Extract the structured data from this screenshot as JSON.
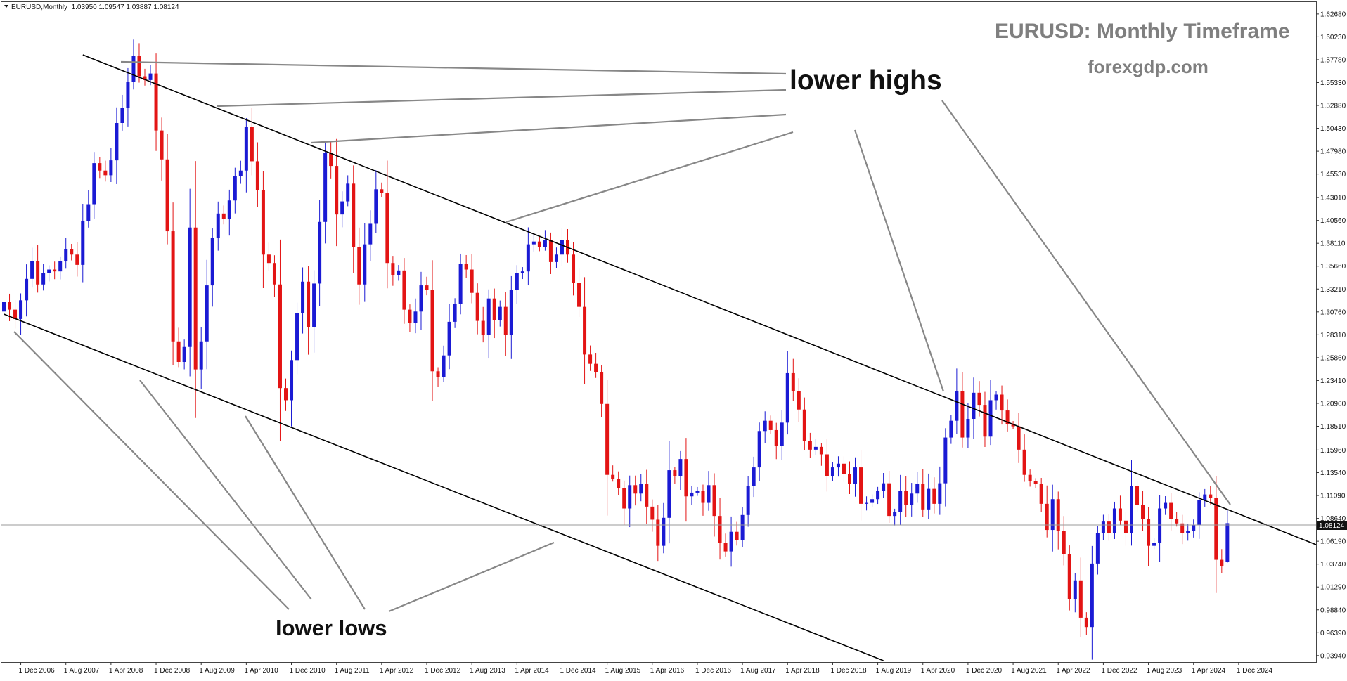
{
  "header": {
    "symbol_line": "EURUSD,Monthly  1.03950 1.09547 1.03887 1.08124"
  },
  "annotations": {
    "title": "EURUSD: Monthly Timeframe",
    "site": "forexgdp.com",
    "lower_highs": "lower highs",
    "lower_lows": "lower lows"
  },
  "current_price_label": "1.08124",
  "chart_data": {
    "type": "candlestick",
    "symbol": "EURUSD",
    "timeframe": "Monthly",
    "ohlc_last": {
      "open": 1.0395,
      "high": 1.09547,
      "low": 1.03887,
      "close": 1.08124
    },
    "ylim": [
      0.9325,
      1.6395
    ],
    "y_ticks": [
      "1.62680",
      "1.60230",
      "1.57780",
      "1.55330",
      "1.52880",
      "1.50430",
      "1.47980",
      "1.45530",
      "1.43010",
      "1.40560",
      "1.38110",
      "1.35660",
      "1.33210",
      "1.30760",
      "1.28310",
      "1.25860",
      "1.23410",
      "1.20960",
      "1.18510",
      "1.15960",
      "1.13540",
      "1.11090",
      "1.08640",
      "1.06190",
      "1.03740",
      "1.01290",
      "0.98840",
      "0.96390",
      "0.93940"
    ],
    "x_ticks": [
      "1 Dec 2006",
      "1 Aug 2007",
      "1 Apr 2008",
      "1 Dec 2008",
      "1 Aug 2009",
      "1 Apr 2010",
      "1 Dec 2010",
      "1 Aug 2011",
      "1 Apr 2012",
      "1 Dec 2012",
      "1 Aug 2013",
      "1 Apr 2014",
      "1 Dec 2014",
      "1 Aug 2015",
      "1 Apr 2016",
      "1 Dec 2016",
      "1 Aug 2017",
      "1 Apr 2018",
      "1 Dec 2018",
      "1 Aug 2019",
      "1 Apr 2020",
      "1 Dec 2020",
      "1 Aug 2021",
      "1 Apr 2022",
      "1 Dec 2022",
      "1 Aug 2023",
      "1 Apr 2024",
      "1 Dec 2024"
    ],
    "x_start": "2006-09",
    "closes": [
      1.318,
      1.31,
      1.3,
      1.32,
      1.343,
      1.362,
      1.337,
      1.349,
      1.353,
      1.351,
      1.362,
      1.375,
      1.369,
      1.358,
      1.405,
      1.423,
      1.467,
      1.459,
      1.454,
      1.47,
      1.51,
      1.526,
      1.554,
      1.582,
      1.56,
      1.556,
      1.563,
      1.502,
      1.471,
      1.394,
      1.276,
      1.254,
      1.27,
      1.398,
      1.246,
      1.276,
      1.336,
      1.387,
      1.413,
      1.407,
      1.427,
      1.453,
      1.459,
      1.506,
      1.469,
      1.438,
      1.369,
      1.36,
      1.337,
      1.226,
      1.213,
      1.256,
      1.306,
      1.34,
      1.291,
      1.338,
      1.404,
      1.478,
      1.464,
      1.412,
      1.426,
      1.445,
      1.377,
      1.337,
      1.38,
      1.402,
      1.439,
      1.435,
      1.36,
      1.347,
      1.352,
      1.31,
      1.296,
      1.308,
      1.336,
      1.331,
      1.244,
      1.238,
      1.261,
      1.297,
      1.316,
      1.359,
      1.353,
      1.328,
      1.298,
      1.283,
      1.322,
      1.299,
      1.313,
      1.283,
      1.331,
      1.349,
      1.351,
      1.38,
      1.383,
      1.377,
      1.385,
      1.361,
      1.369,
      1.385,
      1.369,
      1.339,
      1.313,
      1.262,
      1.252,
      1.243,
      1.209,
      1.133,
      1.129,
      1.119,
      1.097,
      1.122,
      1.113,
      1.123,
      1.099,
      1.085,
      1.057,
      1.087,
      1.138,
      1.132,
      1.15,
      1.11,
      1.114,
      1.116,
      1.103,
      1.122,
      1.089,
      1.06,
      1.051,
      1.072,
      1.063,
      1.09,
      1.121,
      1.141,
      1.18,
      1.191,
      1.181,
      1.164,
      1.189,
      1.242,
      1.223,
      1.203,
      1.169,
      1.16,
      1.163,
      1.155,
      1.132,
      1.141,
      1.145,
      1.134,
      1.123,
      1.141,
      1.102,
      1.103,
      1.107,
      1.116,
      1.124,
      1.089,
      1.093,
      1.116,
      1.101,
      1.113,
      1.123,
      1.096,
      1.118,
      1.102,
      1.124,
      1.173,
      1.191,
      1.223,
      1.173,
      1.193,
      1.221,
      1.208,
      1.174,
      1.213,
      1.219,
      1.202,
      1.187,
      1.185,
      1.16,
      1.133,
      1.126,
      1.123,
      1.102,
      1.074,
      1.107,
      1.073,
      1.048,
      1.0,
      1.02,
      0.98,
      0.97,
      1.038,
      1.071,
      1.083,
      1.071,
      1.097,
      1.084,
      1.071,
      1.121,
      1.101,
      1.086,
      1.057,
      1.06,
      1.097,
      1.103,
      1.086,
      1.081,
      1.071,
      1.073,
      1.079,
      1.106,
      1.112,
      1.108,
      1.042,
      1.035,
      1.081
    ],
    "channel": {
      "upper": {
        "start": [
          "2007-11",
          1.583
        ],
        "end": [
          "2025-12",
          1.0624
        ]
      },
      "lower": {
        "start": [
          "2006-09",
          1.3052
        ],
        "end": [
          "2019-09",
          0.934
        ]
      }
    }
  },
  "colors": {
    "bull": "#1a1ad4",
    "bear": "#e31414",
    "axis": "#333333",
    "annotation_grey": "#7f7f7f",
    "pointer_line": "#878787"
  }
}
